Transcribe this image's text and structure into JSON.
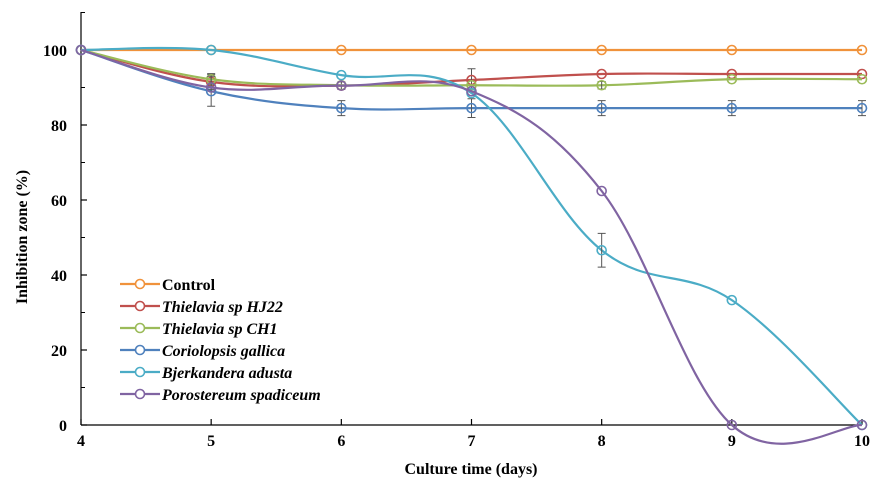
{
  "chart_data": {
    "type": "line",
    "title": "",
    "xlabel": "Culture time (days)",
    "ylabel": "Inhibition zone (%)",
    "xlim": [
      4,
      10
    ],
    "ylim": [
      0,
      110
    ],
    "x_ticks": [
      "4",
      "5",
      "6",
      "7",
      "8",
      "9",
      "10"
    ],
    "y_ticks": [
      "0",
      "20",
      "40",
      "60",
      "80",
      "100"
    ],
    "grid": false,
    "legend_position": "bottom-left",
    "x": [
      4,
      5,
      6,
      7,
      8,
      9,
      10
    ],
    "series": [
      {
        "name": "Control",
        "italic": false,
        "color": "#f0923b",
        "values": [
          100,
          100,
          100,
          100,
          100,
          100,
          100
        ],
        "errors": [
          0,
          0,
          0,
          0,
          0,
          0,
          0
        ]
      },
      {
        "name": "Thielavia sp HJ22",
        "italic": true,
        "color": "#c0504d",
        "values": [
          100,
          91.5,
          90.5,
          92,
          93.6,
          93.6,
          93.6
        ],
        "errors": [
          0,
          2,
          1,
          3,
          0,
          0,
          0
        ]
      },
      {
        "name": "Thielavia sp CH1",
        "italic": true,
        "color": "#9bbb59",
        "values": [
          100,
          92.2,
          90.6,
          90.6,
          90.6,
          92.2,
          92.2
        ],
        "errors": [
          0,
          1.5,
          0,
          0,
          1,
          0,
          0
        ]
      },
      {
        "name": "Coriolopsis gallica",
        "italic": true,
        "color": "#4f81bd",
        "values": [
          100,
          89,
          84.5,
          84.5,
          84.5,
          84.5,
          84.5
        ],
        "errors": [
          0,
          4,
          2,
          2.5,
          2,
          2,
          2
        ]
      },
      {
        "name": "Bjerkandera adusta",
        "italic": true,
        "color": "#4bacc6",
        "values": [
          100,
          100,
          93.3,
          88.5,
          46.6,
          33.3,
          0
        ],
        "errors": [
          0,
          0,
          0,
          0,
          4.5,
          0,
          0
        ]
      },
      {
        "name": "Porostereum spadiceum",
        "italic": true,
        "color": "#8064a2",
        "values": [
          100,
          90,
          90.5,
          89,
          62.4,
          0,
          0
        ],
        "errors": [
          0,
          0,
          0,
          0,
          0,
          0,
          0
        ]
      }
    ]
  }
}
